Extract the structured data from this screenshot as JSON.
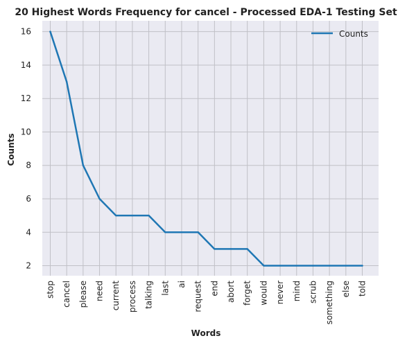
{
  "chart_data": {
    "type": "line",
    "title": "20 Highest Words Frequency for cancel - Processed EDA-1 Testing Set",
    "xlabel": "Words",
    "ylabel": "Counts",
    "categories": [
      "stop",
      "cancel",
      "please",
      "need",
      "current",
      "process",
      "talking",
      "last",
      "ai",
      "request",
      "end",
      "abort",
      "forget",
      "would",
      "never",
      "mind",
      "scrub",
      "something",
      "else",
      "told"
    ],
    "series": [
      {
        "name": "Counts",
        "values": [
          16,
          13,
          8,
          6,
          5,
          5,
          5,
          4,
          4,
          4,
          3,
          3,
          3,
          2,
          2,
          2,
          2,
          2,
          2,
          2
        ],
        "color": "#1f77b4"
      }
    ],
    "ylim": [
      1.4,
      16.65
    ],
    "yticks": [
      2,
      4,
      6,
      8,
      10,
      12,
      14,
      16
    ],
    "grid": true,
    "legend_position": "top-right",
    "plot_background": "#eaeaf2",
    "grid_color": "#c0c0c6"
  }
}
